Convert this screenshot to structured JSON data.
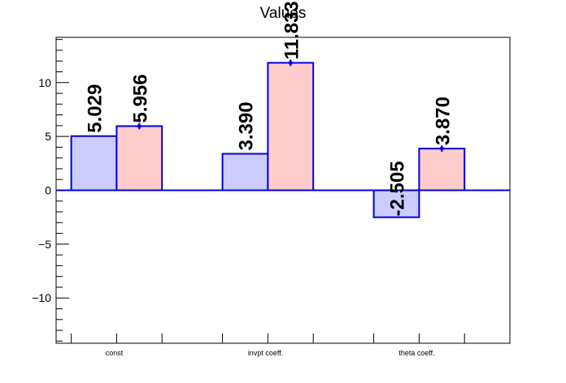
{
  "chart_data": {
    "type": "bar",
    "title": "Values",
    "xlabel": "",
    "ylabel": "",
    "categories": [
      "const",
      "invpt coeff.",
      "theta coeff."
    ],
    "ylim": [
      -14.2,
      14.2
    ],
    "yticks": [
      -10,
      -5,
      0,
      5,
      10
    ],
    "ytick_labels": [
      "−10",
      "−5",
      "0",
      "5",
      "10"
    ],
    "grid": false,
    "legend": "none",
    "series": [
      {
        "values": [
          5.029,
          3.39,
          -2.505
        ],
        "labels": [
          "5.029",
          "3.390",
          "-2.505"
        ],
        "color": "#ccccff",
        "errors": [
          0,
          0,
          0
        ]
      },
      {
        "values": [
          5.956,
          11.833,
          3.87
        ],
        "labels": [
          "5.956",
          "11.833",
          "3.870"
        ],
        "color": "#ffcccc",
        "errors": [
          0.3,
          0.3,
          0.3
        ]
      }
    ],
    "colors": {
      "outline": "#0000dd",
      "axis": "#000000"
    }
  }
}
